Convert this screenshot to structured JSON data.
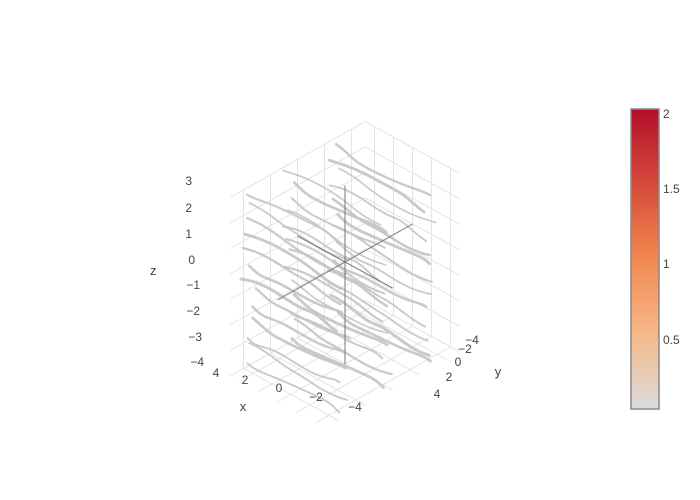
{
  "chart_data": {
    "type": "streamtube",
    "scene": {
      "x_axis": {
        "title": "x",
        "ticks": [
          "4",
          "2",
          "0",
          "−2",
          "−4"
        ],
        "range": [
          -5,
          5
        ]
      },
      "y_axis": {
        "title": "y",
        "ticks": [
          "−4",
          "−2",
          "0",
          "2",
          "4"
        ],
        "range": [
          -5,
          5
        ]
      },
      "z_axis": {
        "title": "z",
        "ticks": [
          "3",
          "2",
          "1",
          "0",
          "−1",
          "−2",
          "−3",
          "−4"
        ],
        "range": [
          -4,
          3
        ]
      },
      "grid": true
    },
    "colorbar": {
      "ticks": [
        "2",
        "1.5",
        "1",
        "0.5"
      ],
      "range": [
        0,
        2
      ],
      "colorscale": [
        "#dcdcdc",
        "#f5b98a",
        "#f2884f",
        "#d54a3b",
        "#b2102a"
      ]
    },
    "tube_color": "#c4c4c4"
  }
}
